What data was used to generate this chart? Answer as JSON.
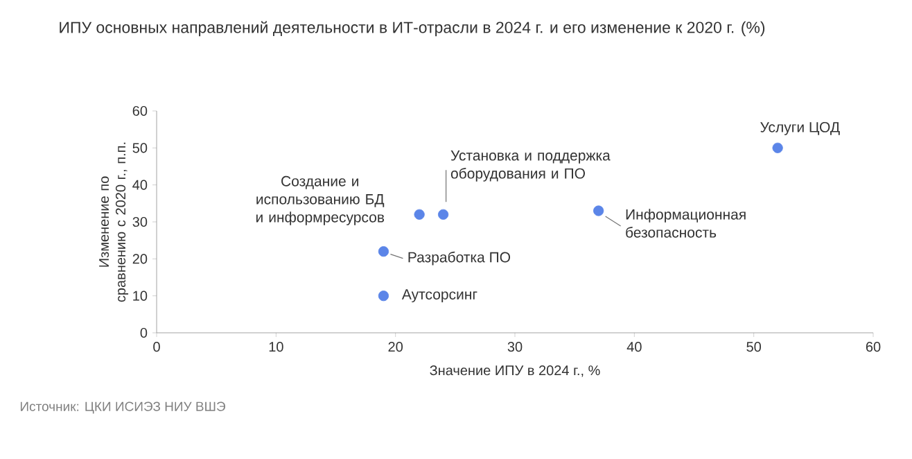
{
  "chart_data": {
    "type": "scatter",
    "title": "ИПУ основных направлений деятельности в ИТ-отрасли в 2024 г. и его изменение к 2020 г. (%)",
    "xlabel": "Значение ИПУ в 2024 г., %",
    "ylabel": "Изменение по сравнению с 2020 г., п.п.",
    "x": [
      52,
      24,
      22,
      37,
      19,
      19
    ],
    "values": [
      50,
      32,
      32,
      33,
      22,
      10
    ],
    "color": "#5b85e8",
    "xlim": [
      0,
      60
    ],
    "ylim": [
      0,
      60
    ],
    "xticks": [
      0,
      10,
      20,
      30,
      40,
      50,
      60
    ],
    "yticks": [
      0,
      10,
      20,
      30,
      40,
      50,
      60
    ],
    "annotations": [
      {
        "text": "Услуги ЦОД",
        "x": 52,
        "y": 50
      },
      {
        "text": "Установка и поддержка оборудования и ПО",
        "x": 24,
        "y": 32
      },
      {
        "text": "Создание и использованию БД и информресурсов",
        "x": 22,
        "y": 32
      },
      {
        "text": "Информационная безопасность",
        "x": 37,
        "y": 33
      },
      {
        "text": "Разработка ПО",
        "x": 19,
        "y": 22
      },
      {
        "text": "Аутсорсинг",
        "x": 19,
        "y": 10
      },
      "Источник: ЦКИ ИСИЭЗ НИУ ВШЭ"
    ]
  }
}
